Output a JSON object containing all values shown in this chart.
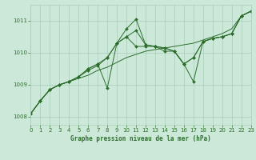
{
  "title": "Graphe pression niveau de la mer (hPa)",
  "background_color": "#cce8d8",
  "grid_color": "#aaccbb",
  "line_color": "#2d6e2d",
  "xlim": [
    0,
    23
  ],
  "ylim": [
    1007.75,
    1011.5
  ],
  "xticks": [
    0,
    1,
    2,
    3,
    4,
    5,
    6,
    7,
    8,
    9,
    10,
    11,
    12,
    13,
    14,
    15,
    16,
    17,
    18,
    19,
    20,
    21,
    22,
    23
  ],
  "yticks": [
    1008,
    1009,
    1010,
    1011
  ],
  "series": [
    {
      "data": [
        1008.1,
        1008.5,
        1008.85,
        1009.0,
        1009.1,
        1009.2,
        1009.3,
        1009.45,
        1009.55,
        1009.7,
        1009.85,
        1009.95,
        1010.05,
        1010.1,
        1010.15,
        1010.2,
        1010.25,
        1010.3,
        1010.4,
        1010.5,
        1010.6,
        1010.75,
        1011.15,
        1011.3
      ],
      "markers": false
    },
    {
      "data": [
        1008.1,
        1008.5,
        1008.85,
        1009.0,
        1009.1,
        1009.25,
        1009.45,
        1009.6,
        1009.85,
        1010.3,
        1010.75,
        1011.05,
        1010.25,
        1010.2,
        1010.15,
        1010.05,
        1009.65,
        1009.85,
        1010.35,
        1010.45,
        1010.5,
        1010.6,
        1011.15,
        1011.3
      ],
      "markers": true
    },
    {
      "data": [
        1008.1,
        1008.5,
        1008.85,
        1009.0,
        1009.1,
        1009.25,
        1009.5,
        1009.65,
        1008.9,
        1010.3,
        1010.5,
        1010.7,
        1010.25,
        1010.2,
        1010.15,
        1010.05,
        1009.65,
        1009.85,
        1010.35,
        1010.45,
        1010.5,
        1010.6,
        1011.15,
        1011.3
      ],
      "markers": true
    },
    {
      "data": [
        1008.1,
        1008.5,
        1008.85,
        1009.0,
        1009.1,
        1009.25,
        1009.5,
        1009.65,
        1009.85,
        1010.3,
        1010.5,
        1010.2,
        1010.2,
        1010.2,
        1010.05,
        1010.05,
        1009.65,
        1009.1,
        1010.35,
        1010.45,
        1010.5,
        1010.6,
        1011.15,
        1011.3
      ],
      "markers": true
    }
  ]
}
